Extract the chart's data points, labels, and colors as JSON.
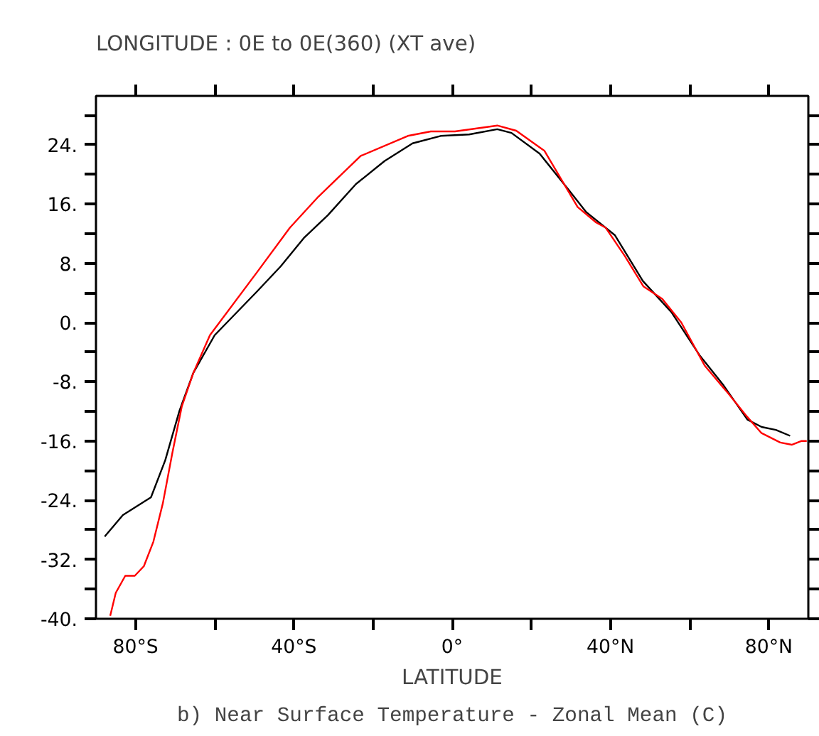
{
  "chart_data": {
    "type": "line",
    "subtitle": "LONGITUDE : 0E to 0E(360) (XT ave)",
    "title": "b) Near Surface Temperature - Zonal Mean (C)",
    "xlabel": "LATITUDE",
    "xlim": [
      -90,
      90
    ],
    "ylim": [
      -40,
      30.6
    ],
    "xticks": [
      {
        "value": -80,
        "label": "80°S"
      },
      {
        "value": -60,
        "label": null
      },
      {
        "value": -40,
        "label": "40°S"
      },
      {
        "value": -20,
        "label": null
      },
      {
        "value": 0,
        "label": "0°"
      },
      {
        "value": 20,
        "label": null
      },
      {
        "value": 40,
        "label": "40°N"
      },
      {
        "value": 60,
        "label": null
      },
      {
        "value": 80,
        "label": "80°N"
      }
    ],
    "yticks": [
      {
        "value": -40,
        "label": "-40."
      },
      {
        "value": -36,
        "label": null
      },
      {
        "value": -32,
        "label": "-32."
      },
      {
        "value": -28,
        "label": null
      },
      {
        "value": -24,
        "label": "-24."
      },
      {
        "value": -20,
        "label": null
      },
      {
        "value": -16,
        "label": "-16."
      },
      {
        "value": -12,
        "label": null
      },
      {
        "value": -8,
        "label": "-8."
      },
      {
        "value": -4,
        "label": null
      },
      {
        "value": 0,
        "label": "0."
      },
      {
        "value": 4,
        "label": null
      },
      {
        "value": 8,
        "label": "8."
      },
      {
        "value": 12,
        "label": null
      },
      {
        "value": 16,
        "label": "16."
      },
      {
        "value": 20,
        "label": null
      },
      {
        "value": 24,
        "label": "24."
      },
      {
        "value": 28,
        "label": null
      }
    ],
    "line_style": "solid",
    "series": [
      {
        "color": "#000000",
        "x": [
          -87.8,
          -83.2,
          -76.1,
          -72.5,
          -68.9,
          -65.4,
          -60,
          -49.3,
          -43.3,
          -37.5,
          -31.4,
          -24.3,
          -17.1,
          -10,
          -2.9,
          4.3,
          11.4,
          15,
          22.1,
          29.3,
          33.9,
          41.1,
          48.2,
          55.4,
          62.5,
          68.6,
          74.6,
          78.2,
          81.8,
          85.4
        ],
        "values": [
          -28.9,
          -26.0,
          -23.6,
          -18.6,
          -11.9,
          -6.8,
          -1.7,
          4.2,
          7.6,
          11.4,
          14.5,
          18.7,
          21.8,
          24.2,
          25.2,
          25.4,
          26.1,
          25.6,
          22.8,
          18.0,
          14.9,
          11.8,
          5.6,
          1.4,
          -4.4,
          -8.5,
          -13.1,
          -14.1,
          -14.5,
          -15.3
        ]
      },
      {
        "color": "#ff0000",
        "x": [
          -86.4,
          -85,
          -82.6,
          -80.2,
          -77.9,
          -75.5,
          -73.1,
          -70.7,
          -68.3,
          -65.4,
          -61.2,
          -49.3,
          -41,
          -33.8,
          -23.1,
          -11.2,
          -5.4,
          0.7,
          11.4,
          16.2,
          23.3,
          31.7,
          36.4,
          38.8,
          43.6,
          48.3,
          53.1,
          57.9,
          63.8,
          69.8,
          74.5,
          78.1,
          82.9,
          85.8,
          88.2,
          89.6
        ],
        "values": [
          -39.6,
          -36.5,
          -34.2,
          -34.2,
          -32.9,
          -29.6,
          -24.4,
          -17.6,
          -11.3,
          -6.8,
          -1.7,
          6.8,
          12.8,
          17.0,
          22.5,
          25.2,
          25.8,
          25.8,
          26.6,
          25.9,
          23.2,
          15.6,
          13.5,
          12.8,
          9.0,
          4.9,
          3.2,
          0.0,
          -5.8,
          -9.6,
          -12.7,
          -14.9,
          -16.2,
          -16.5,
          -16.0,
          -16.0
        ]
      }
    ]
  }
}
